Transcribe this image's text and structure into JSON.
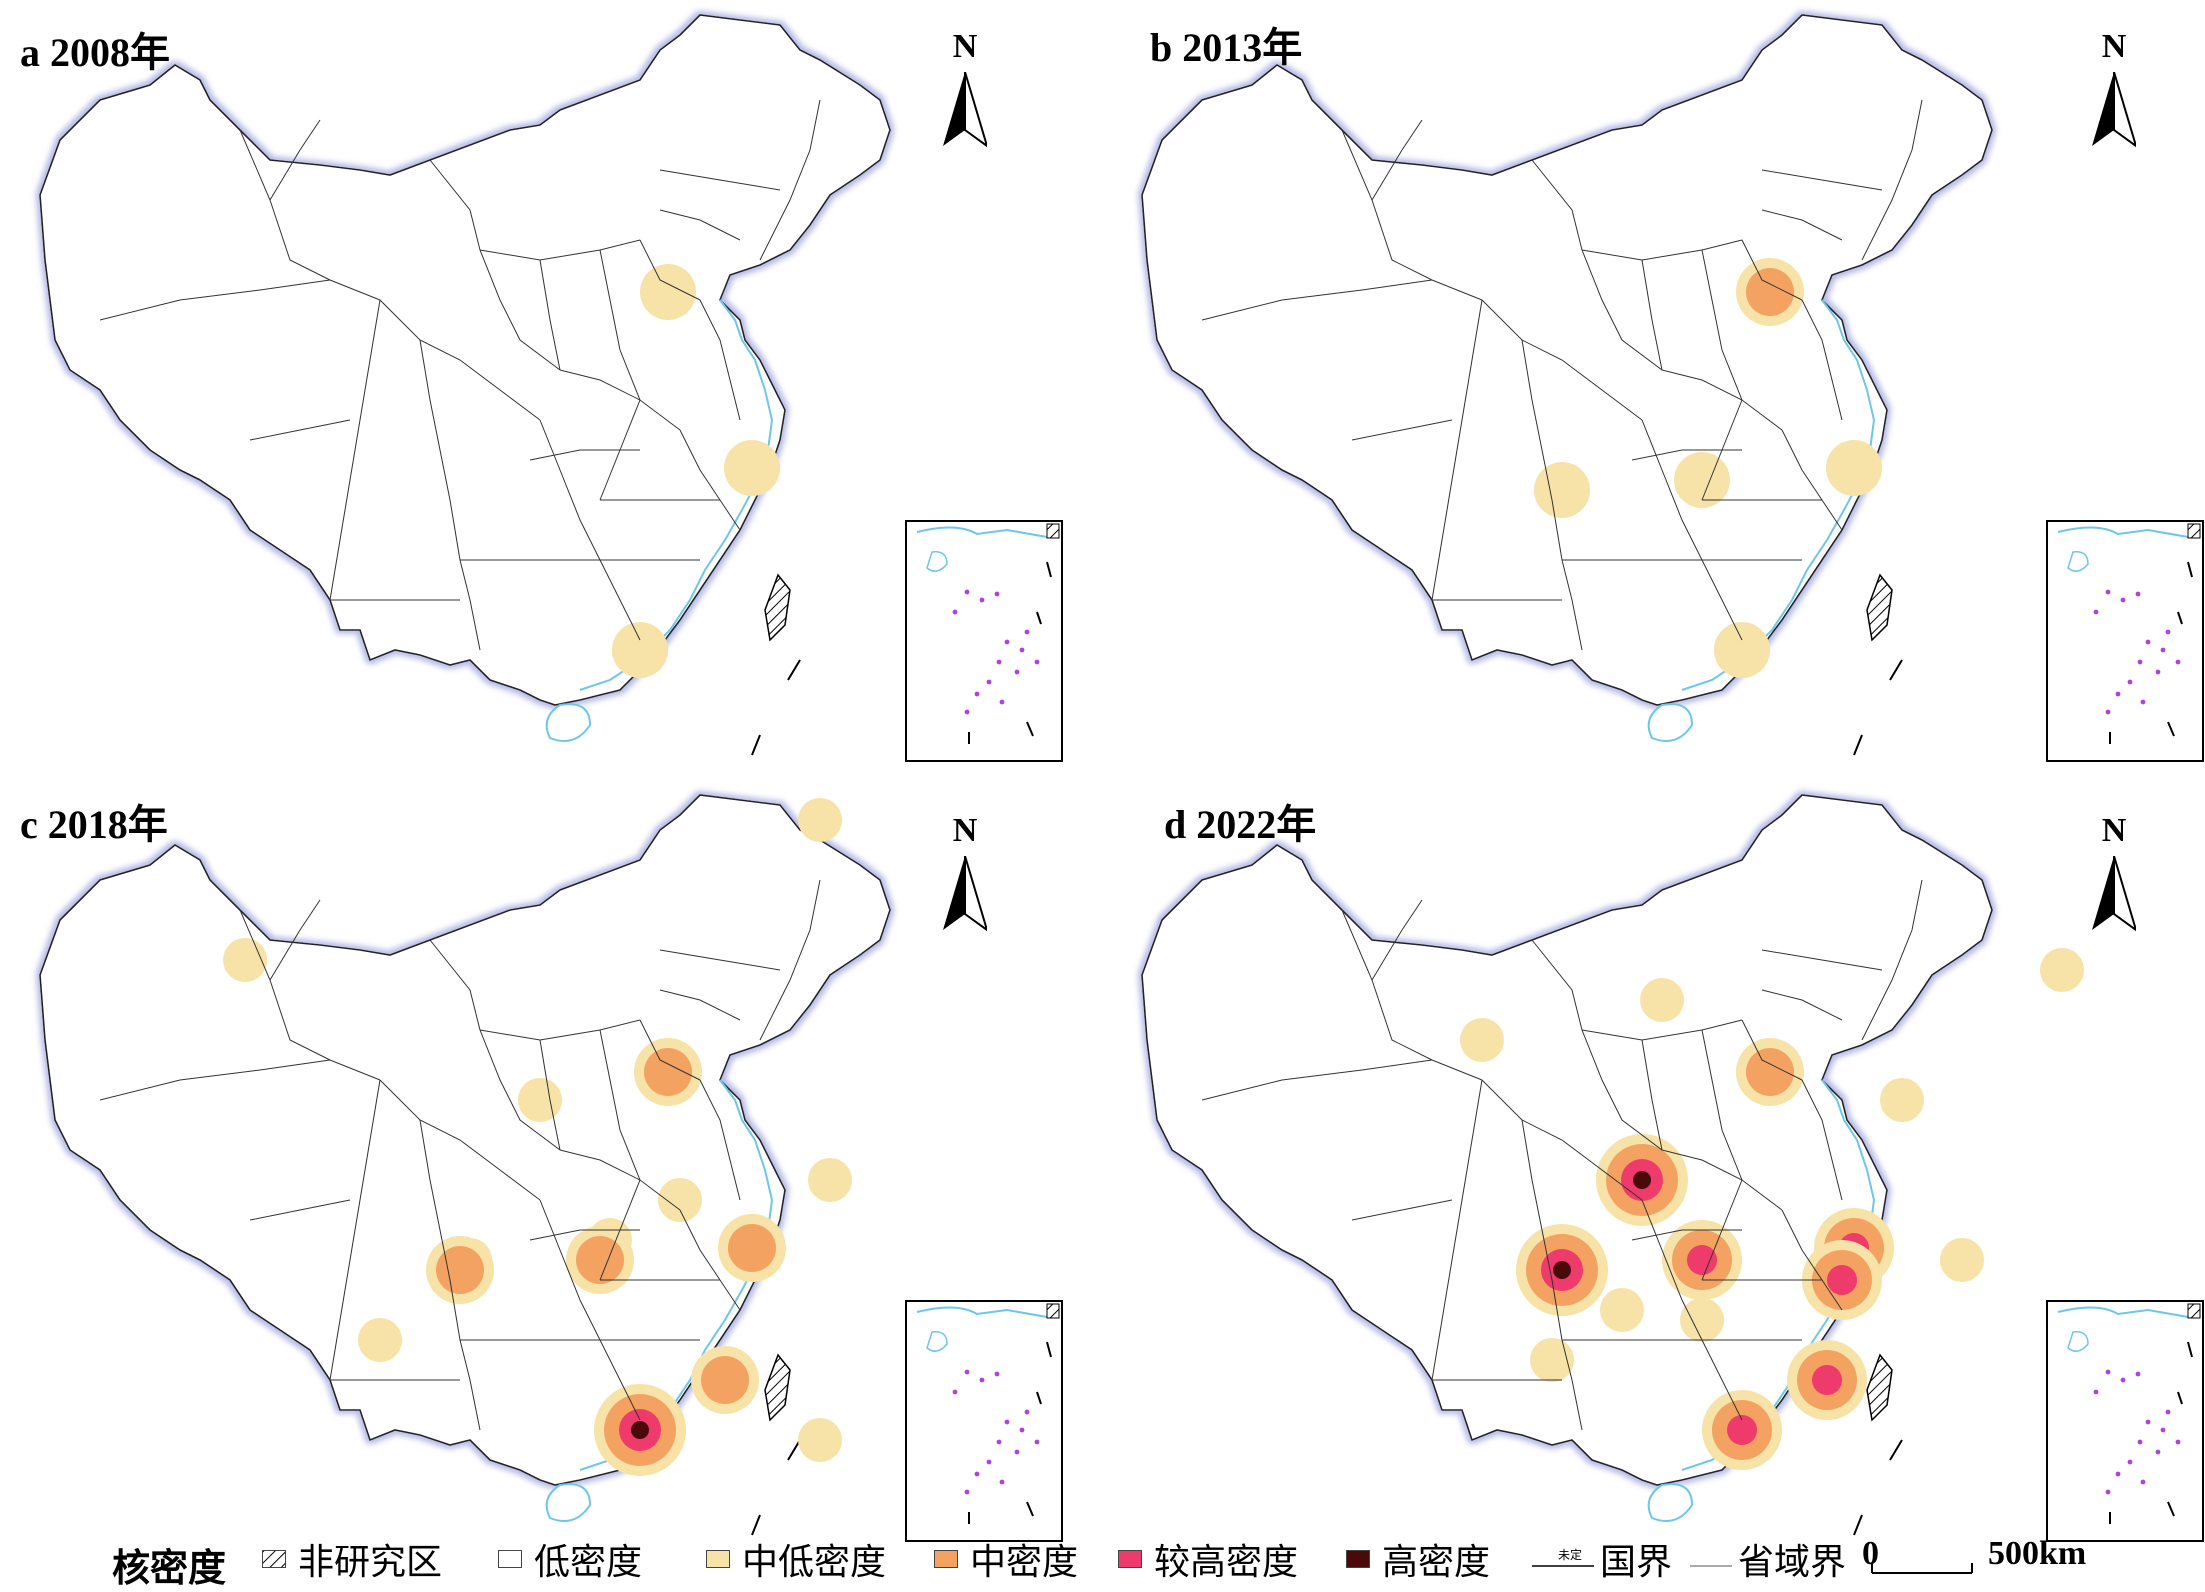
{
  "panels": [
    {
      "label": "a 2008年"
    },
    {
      "label": "b 2013年"
    },
    {
      "label": "c 2018年"
    },
    {
      "label": "d 2022年"
    }
  ],
  "north_arrow": "N",
  "legend": {
    "title": "核密度",
    "items": [
      {
        "label": "非研究区",
        "pattern": "hatched"
      },
      {
        "label": "低密度",
        "color": "#ffffff"
      },
      {
        "label": "中低密度",
        "color": "#f7e2a8"
      },
      {
        "label": "中密度",
        "color": "#f4a261"
      },
      {
        "label": "较高密度",
        "color": "#ee3b6b"
      },
      {
        "label": "高密度",
        "color": "#4a0a0a"
      }
    ],
    "national_border": "国界",
    "national_border_mark": "未定",
    "provincial_border": "省域界",
    "scale_zero": "0",
    "scale_max": "500km"
  },
  "colors": {
    "low": "#ffffff",
    "mid_low": "#f7e2a8",
    "mid": "#f4a261",
    "high_mid": "#ee3b6b",
    "high": "#4a0a0a",
    "coast": "#6ec6e8",
    "island_dots": "#b040e0",
    "border_glow": "#c8cbe8"
  },
  "density_levels_by_year": {
    "2008": {
      "hotspots": [
        {
          "place": "Beijing-Tianjin",
          "level": "mid_low"
        },
        {
          "place": "Shanghai",
          "level": "mid_low"
        },
        {
          "place": "Pearl River Delta",
          "level": "mid_low"
        }
      ]
    },
    "2013": {
      "hotspots": [
        {
          "place": "Beijing-Tianjin",
          "level": "mid"
        },
        {
          "place": "Shanghai",
          "level": "mid_low"
        },
        {
          "place": "Pearl River Delta",
          "level": "mid_low"
        },
        {
          "place": "Chengdu",
          "level": "mid_low"
        },
        {
          "place": "Wuhan",
          "level": "mid_low"
        }
      ]
    },
    "2018": {
      "hotspots": [
        {
          "place": "Beijing-Tianjin",
          "level": "mid"
        },
        {
          "place": "Shanghai",
          "level": "mid"
        },
        {
          "place": "Pearl River Delta",
          "level": "high"
        },
        {
          "place": "Chengdu",
          "level": "mid"
        },
        {
          "place": "Wuhan",
          "level": "mid"
        },
        {
          "place": "Fujian coast",
          "level": "mid"
        }
      ]
    },
    "2022": {
      "hotspots": [
        {
          "place": "Beijing-Tianjin",
          "level": "mid"
        },
        {
          "place": "Shanghai",
          "level": "high_mid"
        },
        {
          "place": "Pearl River Delta",
          "level": "high_mid"
        },
        {
          "place": "Chengdu",
          "level": "high"
        },
        {
          "place": "Xi'an",
          "level": "high"
        },
        {
          "place": "Wuhan",
          "level": "high_mid"
        },
        {
          "place": "Hangzhou",
          "level": "high_mid"
        },
        {
          "place": "Fujian coast",
          "level": "high_mid"
        }
      ]
    }
  }
}
